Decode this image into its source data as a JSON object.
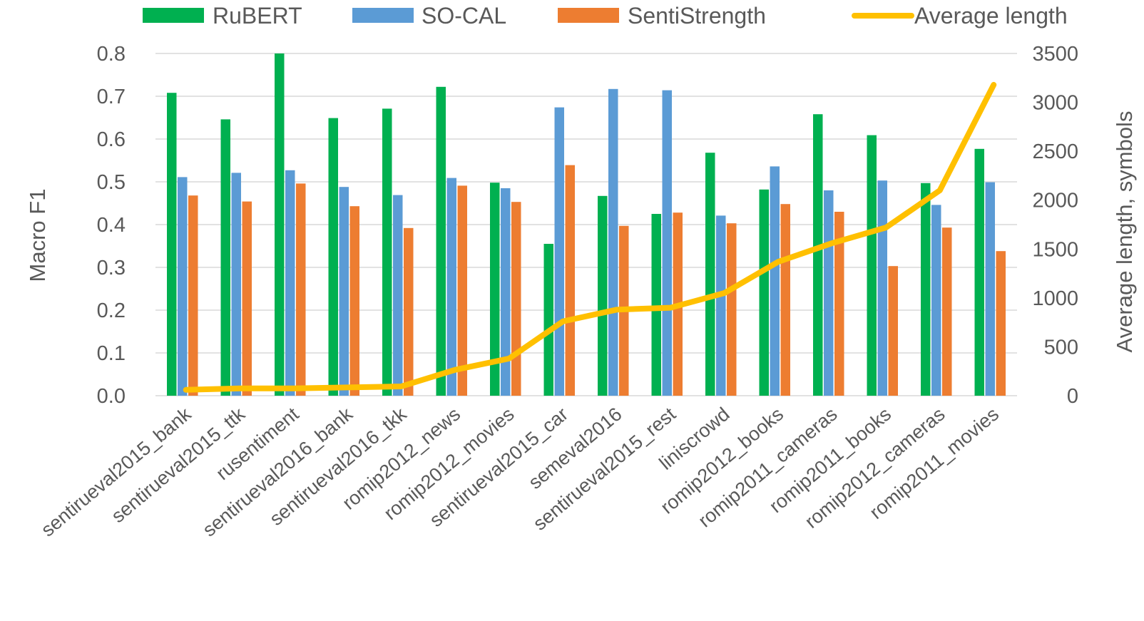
{
  "chart_data": {
    "type": "bar",
    "categories": [
      "sentirueval2015_bank",
      "sentirueval2015_ttk",
      "rusentiment",
      "sentirueval2016_bank",
      "sentirueval2016_tkk",
      "romip2012_news",
      "romip2012_movies",
      "sentirueval2015_car",
      "semeval2016",
      "sentirueval2015_rest",
      "liniscrowd",
      "romip2012_books",
      "romip2011_cameras",
      "romip2011_books",
      "romip2012_cameras",
      "romip2011_movies"
    ],
    "series": [
      {
        "name": "RuBERT",
        "kind": "bar",
        "axis": "left",
        "color": "#00b050",
        "values": [
          0.708,
          0.646,
          0.8,
          0.649,
          0.671,
          0.722,
          0.498,
          0.355,
          0.467,
          0.425,
          0.568,
          0.482,
          0.658,
          0.609,
          0.497,
          0.577
        ]
      },
      {
        "name": "SO-CAL",
        "kind": "bar",
        "axis": "left",
        "color": "#5b9bd5",
        "values": [
          0.511,
          0.521,
          0.527,
          0.488,
          0.469,
          0.509,
          0.485,
          0.674,
          0.717,
          0.714,
          0.421,
          0.536,
          0.48,
          0.503,
          0.446,
          0.499
        ]
      },
      {
        "name": "SentiStrength",
        "kind": "bar",
        "axis": "left",
        "color": "#ed7d31",
        "values": [
          0.468,
          0.454,
          0.496,
          0.443,
          0.392,
          0.491,
          0.453,
          0.539,
          0.397,
          0.428,
          0.403,
          0.448,
          0.43,
          0.303,
          0.393,
          0.338
        ]
      },
      {
        "name": "Average length",
        "kind": "line",
        "axis": "right",
        "color": "#ffc000",
        "values": [
          60,
          75,
          75,
          85,
          95,
          265,
          380,
          760,
          880,
          900,
          1050,
          1370,
          1560,
          1720,
          2100,
          3180
        ]
      }
    ],
    "ylabel": "Macro F1",
    "y2label": "Average length, symbols",
    "ylim": [
      0,
      0.8
    ],
    "y2lim": [
      0,
      3500
    ],
    "yticks": [
      "0.0",
      "0.1",
      "0.2",
      "0.3",
      "0.4",
      "0.5",
      "0.6",
      "0.7",
      "0.8"
    ],
    "y2ticks": [
      "0",
      "500",
      "1000",
      "1500",
      "2000",
      "2500",
      "3000",
      "3500"
    ],
    "grid": true,
    "legend_position": "top"
  }
}
